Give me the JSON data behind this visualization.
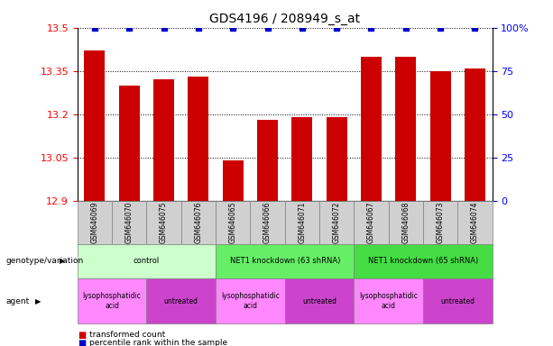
{
  "title": "GDS4196 / 208949_s_at",
  "samples": [
    "GSM646069",
    "GSM646070",
    "GSM646075",
    "GSM646076",
    "GSM646065",
    "GSM646066",
    "GSM646071",
    "GSM646072",
    "GSM646067",
    "GSM646068",
    "GSM646073",
    "GSM646074"
  ],
  "bar_values": [
    13.42,
    13.3,
    13.32,
    13.33,
    13.04,
    13.18,
    13.19,
    13.19,
    13.4,
    13.4,
    13.35,
    13.36
  ],
  "percentile_values": [
    100,
    100,
    100,
    100,
    100,
    100,
    100,
    100,
    100,
    100,
    100,
    100
  ],
  "ylim_left": [
    12.9,
    13.5
  ],
  "ylim_right": [
    0,
    100
  ],
  "yticks_left": [
    12.9,
    13.05,
    13.2,
    13.35,
    13.5
  ],
  "yticks_right": [
    0,
    25,
    50,
    75,
    100
  ],
  "bar_color": "#cc0000",
  "percentile_color": "#0000cc",
  "grid_color": "black",
  "bg_color": "white",
  "genotype_groups": [
    {
      "label": "control",
      "start": 0,
      "end": 4,
      "color": "#ccffcc"
    },
    {
      "label": "NET1 knockdown (63 shRNA)",
      "start": 4,
      "end": 8,
      "color": "#66ee66"
    },
    {
      "label": "NET1 knockdown (65 shRNA)",
      "start": 8,
      "end": 12,
      "color": "#44dd44"
    }
  ],
  "agent_groups": [
    {
      "label": "lysophosphatidic\nacid",
      "start": 0,
      "end": 2,
      "color": "#ff88ff"
    },
    {
      "label": "untreated",
      "start": 2,
      "end": 4,
      "color": "#cc44cc"
    },
    {
      "label": "lysophosphatidic\nacid",
      "start": 4,
      "end": 6,
      "color": "#ff88ff"
    },
    {
      "label": "untreated",
      "start": 6,
      "end": 8,
      "color": "#cc44cc"
    },
    {
      "label": "lysophosphatidic\nacid",
      "start": 8,
      "end": 10,
      "color": "#ff88ff"
    },
    {
      "label": "untreated",
      "start": 10,
      "end": 12,
      "color": "#cc44cc"
    }
  ],
  "legend_items": [
    {
      "label": "transformed count",
      "color": "#cc0000"
    },
    {
      "label": "percentile rank within the sample",
      "color": "#0000cc"
    }
  ]
}
